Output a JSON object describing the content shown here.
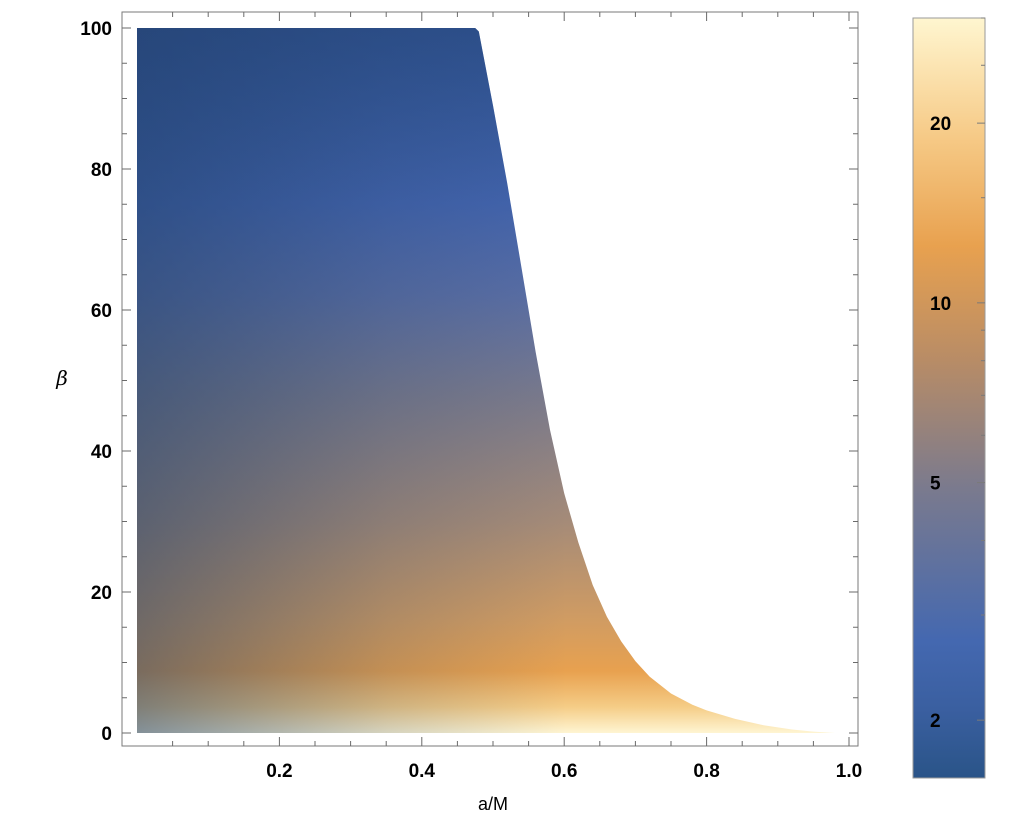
{
  "chart_data": {
    "type": "heatmap",
    "title": "",
    "xlabel": "a/M",
    "ylabel": "β",
    "xlim": [
      0.0,
      1.0
    ],
    "ylim": [
      0,
      100
    ],
    "x_ticks": [
      0.2,
      0.4,
      0.6,
      0.8,
      1.0
    ],
    "x_tick_labels": [
      "0.2",
      "0.4",
      "0.6",
      "0.8",
      "1.0"
    ],
    "y_ticks": [
      0,
      20,
      40,
      60,
      80,
      100
    ],
    "y_tick_labels": [
      "0",
      "20",
      "40",
      "60",
      "80",
      "100"
    ],
    "region_boundary": {
      "description_of_axes": "maximum beta of the filled region as a function of a/M",
      "a_over_M": [
        0.0,
        0.475,
        0.48,
        0.5,
        0.52,
        0.54,
        0.56,
        0.58,
        0.6,
        0.62,
        0.64,
        0.66,
        0.68,
        0.7,
        0.72,
        0.75,
        0.78,
        0.8,
        0.84,
        0.88,
        0.92,
        0.95,
        0.98
      ],
      "beta_max": [
        100,
        100,
        99.5,
        89,
        78,
        66,
        54,
        43,
        34,
        27,
        21,
        16.5,
        13,
        10.2,
        8.0,
        5.6,
        4.0,
        3.2,
        2.0,
        1.1,
        0.5,
        0.2,
        0.0
      ]
    },
    "colorbar": {
      "scale": "log",
      "range": [
        1.6,
        30
      ],
      "ticks": [
        2,
        5,
        10,
        20
      ],
      "tick_labels": [
        "2",
        "5",
        "10",
        "20"
      ],
      "colors": [
        "#2a5488",
        "#4468b0",
        "#8a7e86",
        "#e8a14f",
        "#fff6d0"
      ],
      "color_positions": [
        0.0,
        0.2,
        0.5,
        0.75,
        1.0
      ]
    },
    "legend_placement": "right",
    "grid": false
  }
}
